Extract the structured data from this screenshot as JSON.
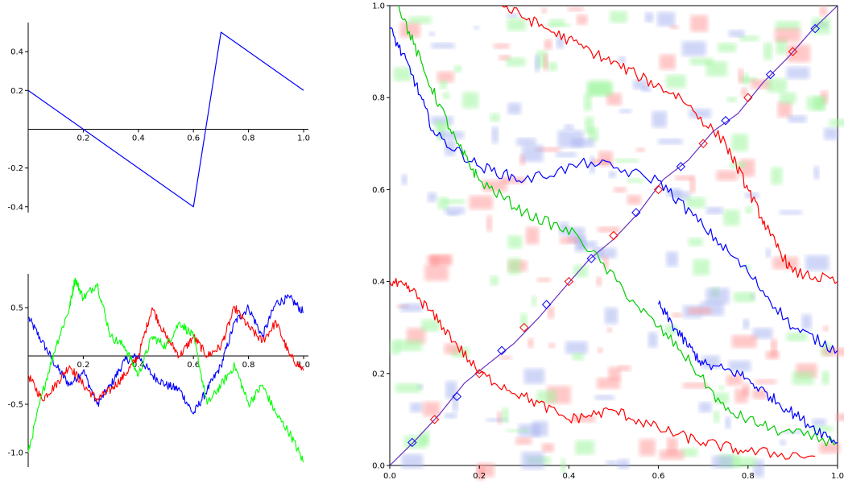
{
  "chart_data": [
    {
      "type": "line",
      "title": "",
      "xlabel": "",
      "ylabel": "",
      "xlim": [
        0,
        1
      ],
      "ylim": [
        -0.43,
        0.55
      ],
      "x_ticks": [
        "0.2",
        "0.4",
        "0.6",
        "0.8",
        "1.0"
      ],
      "y_ticks": [
        "-0.4",
        "-0.2",
        "0.2",
        "0.4"
      ],
      "series": [
        {
          "color": "#0000ff",
          "points": [
            [
              0.0,
              0.2
            ],
            [
              0.6,
              -0.4
            ],
            [
              0.7,
              0.5
            ],
            [
              1.0,
              0.2
            ]
          ]
        }
      ]
    },
    {
      "type": "line",
      "title": "",
      "xlabel": "",
      "ylabel": "",
      "xlim": [
        0,
        1
      ],
      "ylim": [
        -1.15,
        0.85
      ],
      "x_ticks": [
        "0.2",
        "0.4",
        "0.6",
        "0.8",
        "1.0"
      ],
      "y_ticks": [
        "-1.0",
        "-0.5",
        "0.5"
      ],
      "series": [
        {
          "color": "#0000ff",
          "points": [
            [
              0.0,
              0.4
            ],
            [
              0.05,
              0.15
            ],
            [
              0.1,
              -0.1
            ],
            [
              0.15,
              -0.3
            ],
            [
              0.2,
              -0.15
            ],
            [
              0.25,
              -0.5
            ],
            [
              0.3,
              -0.3
            ],
            [
              0.35,
              -0.05
            ],
            [
              0.4,
              0.0
            ],
            [
              0.45,
              -0.2
            ],
            [
              0.5,
              -0.3
            ],
            [
              0.55,
              -0.35
            ],
            [
              0.6,
              -0.6
            ],
            [
              0.65,
              -0.35
            ],
            [
              0.7,
              -0.1
            ],
            [
              0.75,
              0.35
            ],
            [
              0.8,
              0.5
            ],
            [
              0.85,
              0.2
            ],
            [
              0.9,
              0.55
            ],
            [
              0.95,
              0.6
            ],
            [
              1.0,
              0.45
            ]
          ]
        },
        {
          "color": "#ff0000",
          "points": [
            [
              0.0,
              -0.2
            ],
            [
              0.05,
              -0.45
            ],
            [
              0.1,
              -0.3
            ],
            [
              0.15,
              -0.1
            ],
            [
              0.2,
              -0.3
            ],
            [
              0.25,
              -0.45
            ],
            [
              0.3,
              -0.35
            ],
            [
              0.35,
              -0.2
            ],
            [
              0.4,
              0.0
            ],
            [
              0.45,
              0.5
            ],
            [
              0.5,
              0.2
            ],
            [
              0.55,
              0.0
            ],
            [
              0.6,
              0.2
            ],
            [
              0.65,
              0.0
            ],
            [
              0.7,
              0.1
            ],
            [
              0.75,
              0.5
            ],
            [
              0.8,
              0.3
            ],
            [
              0.85,
              0.15
            ],
            [
              0.9,
              0.35
            ],
            [
              0.95,
              0.0
            ],
            [
              1.0,
              -0.15
            ]
          ]
        },
        {
          "color": "#00ff00",
          "points": [
            [
              0.0,
              -1.0
            ],
            [
              0.05,
              -0.4
            ],
            [
              0.1,
              0.1
            ],
            [
              0.15,
              0.5
            ],
            [
              0.17,
              0.8
            ],
            [
              0.2,
              0.6
            ],
            [
              0.25,
              0.75
            ],
            [
              0.3,
              0.2
            ],
            [
              0.35,
              0.1
            ],
            [
              0.4,
              -0.2
            ],
            [
              0.45,
              0.2
            ],
            [
              0.5,
              0.1
            ],
            [
              0.55,
              0.35
            ],
            [
              0.6,
              0.2
            ],
            [
              0.65,
              -0.5
            ],
            [
              0.7,
              -0.3
            ],
            [
              0.75,
              -0.1
            ],
            [
              0.8,
              -0.5
            ],
            [
              0.85,
              -0.3
            ],
            [
              0.9,
              -0.6
            ],
            [
              0.95,
              -0.8
            ],
            [
              1.0,
              -1.1
            ]
          ]
        }
      ]
    },
    {
      "type": "line",
      "title": "",
      "xlabel": "",
      "ylabel": "",
      "xlim": [
        0,
        1
      ],
      "ylim": [
        0,
        1
      ],
      "x_ticks": [
        "0.0",
        "0.2",
        "0.4",
        "0.6",
        "0.8",
        "1.0"
      ],
      "y_ticks": [
        "0.0",
        "0.2",
        "0.4",
        "0.6",
        "0.8",
        "1.0"
      ],
      "series": [
        {
          "color": "#6a2fbf",
          "points": [
            [
              0.0,
              0.0
            ],
            [
              1.0,
              1.0
            ]
          ]
        },
        {
          "color": "#0000ff",
          "points": [
            [
              0.0,
              0.95
            ],
            [
              0.05,
              0.85
            ],
            [
              0.1,
              0.72
            ],
            [
              0.2,
              0.65
            ],
            [
              0.3,
              0.62
            ],
            [
              0.45,
              0.66
            ],
            [
              0.6,
              0.62
            ],
            [
              0.7,
              0.52
            ],
            [
              0.8,
              0.42
            ],
            [
              0.9,
              0.3
            ],
            [
              1.0,
              0.25
            ]
          ]
        },
        {
          "color": "#00cc00",
          "points": [
            [
              0.02,
              1.0
            ],
            [
              0.08,
              0.85
            ],
            [
              0.15,
              0.7
            ],
            [
              0.2,
              0.62
            ],
            [
              0.3,
              0.55
            ],
            [
              0.42,
              0.5
            ],
            [
              0.55,
              0.35
            ],
            [
              0.65,
              0.25
            ],
            [
              0.75,
              0.12
            ],
            [
              0.85,
              0.08
            ],
            [
              1.0,
              0.05
            ]
          ]
        },
        {
          "color": "#ff0000",
          "points": [
            [
              0.0,
              0.4
            ],
            [
              0.05,
              0.38
            ],
            [
              0.12,
              0.3
            ],
            [
              0.2,
              0.2
            ],
            [
              0.3,
              0.15
            ],
            [
              0.4,
              0.1
            ],
            [
              0.5,
              0.12
            ],
            [
              0.6,
              0.08
            ],
            [
              0.7,
              0.05
            ],
            [
              0.8,
              0.03
            ],
            [
              0.95,
              0.02
            ]
          ]
        },
        {
          "color": "#ff0000",
          "points": [
            [
              0.25,
              1.0
            ],
            [
              0.35,
              0.95
            ],
            [
              0.45,
              0.9
            ],
            [
              0.55,
              0.85
            ],
            [
              0.65,
              0.8
            ],
            [
              0.75,
              0.7
            ],
            [
              0.8,
              0.6
            ],
            [
              0.85,
              0.5
            ],
            [
              0.9,
              0.42
            ],
            [
              1.0,
              0.4
            ]
          ]
        },
        {
          "color": "#0000ff",
          "points": [
            [
              0.6,
              0.35
            ],
            [
              0.65,
              0.28
            ],
            [
              0.7,
              0.22
            ],
            [
              0.78,
              0.2
            ],
            [
              0.85,
              0.15
            ],
            [
              0.92,
              0.1
            ],
            [
              1.0,
              0.05
            ]
          ]
        }
      ]
    }
  ]
}
